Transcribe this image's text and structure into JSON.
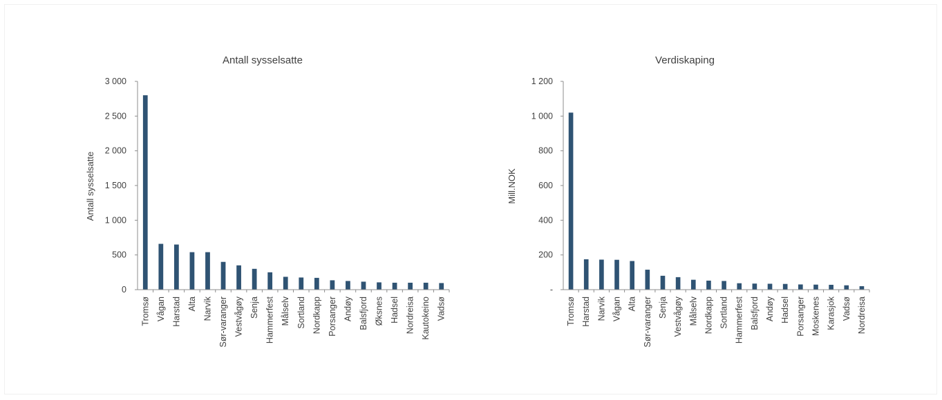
{
  "colors": {
    "bar": "#2f5373",
    "axis": "#8c8c8c",
    "text": "#404040"
  },
  "chart_data": [
    {
      "type": "bar",
      "title": "Antall sysselsatte",
      "ylabel": "Antall sysselsatte",
      "ylim": [
        0,
        3000
      ],
      "yticks": [
        0,
        500,
        1000,
        1500,
        2000,
        2500,
        3000
      ],
      "ytick_labels": [
        "0",
        "500",
        "1 000",
        "1 500",
        "2 000",
        "2 500",
        "3 000"
      ],
      "categories": [
        "Tromsø",
        "Vågan",
        "Harstad",
        "Alta",
        "Narvik",
        "Sør-varanger",
        "Vestvågøy",
        "Senja",
        "Hammerfest",
        "Målselv",
        "Sortland",
        "Nordkapp",
        "Porsanger",
        "Andøy",
        "Balsfjord",
        "Øksnes",
        "Hadsel",
        "Nordreisa",
        "Kautokeino",
        "Vadsø"
      ],
      "values": [
        2800,
        660,
        650,
        540,
        540,
        400,
        350,
        300,
        250,
        185,
        175,
        170,
        135,
        125,
        115,
        105,
        100,
        100,
        100,
        95
      ],
      "grid": false
    },
    {
      "type": "bar",
      "title": "Verdiskaping",
      "ylabel": "Mill.NOK",
      "ylim": [
        0,
        1200
      ],
      "yticks": [
        0,
        200,
        400,
        600,
        800,
        1000,
        1200
      ],
      "ytick_labels": [
        "-",
        "200",
        "400",
        "600",
        "800",
        "1 000",
        "1 200"
      ],
      "categories": [
        "Tromsø",
        "Harstad",
        "Narvik",
        "Vågan",
        "Alta",
        "Sør-varanger",
        "Senja",
        "Vestvågøy",
        "Målselv",
        "Nordkapp",
        "Sortland",
        "Hammerfest",
        "Balsfjord",
        "Andøy",
        "Hadsel",
        "Porsanger",
        "Moskenes",
        "Karasjok",
        "Vadsø",
        "Nordreisa"
      ],
      "values": [
        1020,
        175,
        173,
        172,
        165,
        115,
        80,
        72,
        57,
        52,
        50,
        37,
        35,
        34,
        33,
        30,
        29,
        28,
        25,
        20
      ],
      "grid": false
    }
  ]
}
